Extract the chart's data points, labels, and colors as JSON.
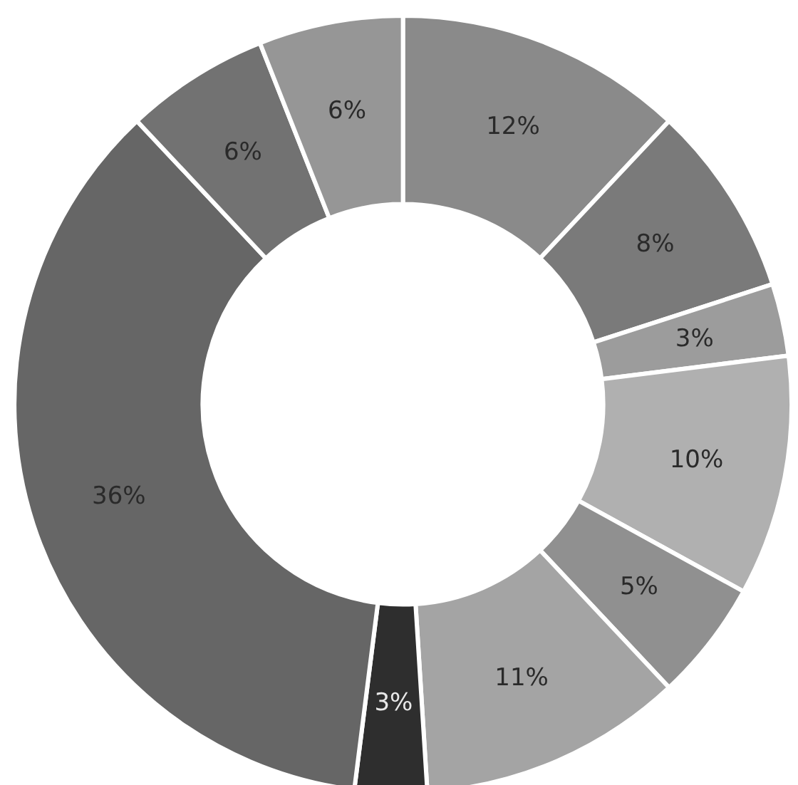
{
  "chart_data": {
    "type": "donut",
    "categories": [
      null,
      null,
      null,
      null,
      null,
      null,
      null,
      null,
      null,
      null
    ],
    "values": [
      12,
      8,
      3,
      10,
      5,
      11,
      3,
      36,
      6,
      6
    ],
    "value_labels": [
      "12%",
      "8%",
      "3%",
      "10%",
      "5%",
      "11%",
      "3%",
      "36%",
      "6%",
      "6%"
    ],
    "colors": [
      "#8a8a8a",
      "#7a7a7a",
      "#9c9c9c",
      "#b0b0b0",
      "#909090",
      "#a4a4a4",
      "#2e2e2e",
      "#666666",
      "#727272",
      "#969696"
    ]
  }
}
